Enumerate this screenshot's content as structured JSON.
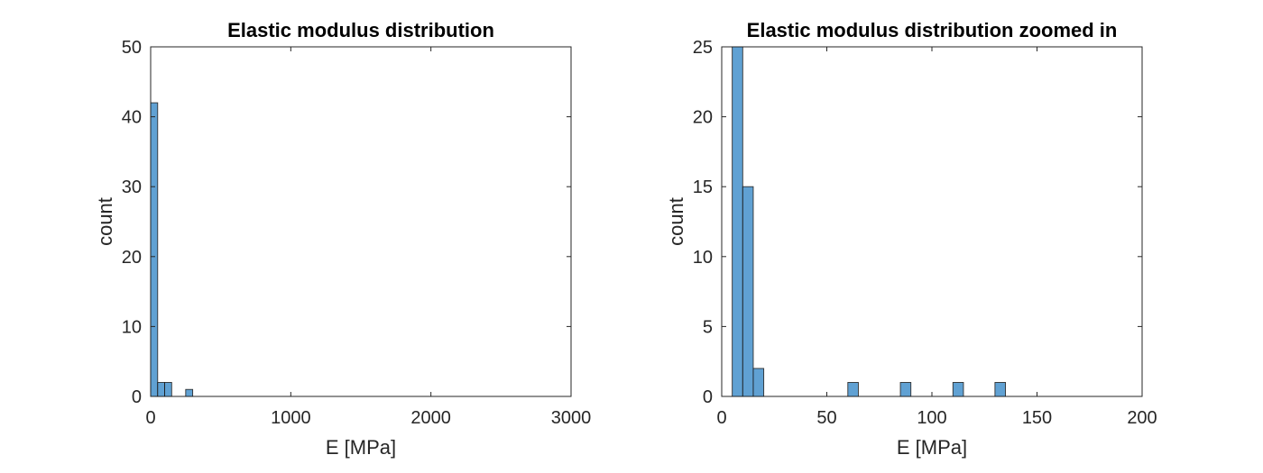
{
  "chart_data": [
    {
      "type": "bar",
      "title": "Elastic modulus distribution",
      "xlabel": "E [MPa]",
      "ylabel": "count",
      "xlim": [
        0,
        3000
      ],
      "ylim": [
        0,
        50
      ],
      "xticks": [
        0,
        1000,
        2000,
        3000
      ],
      "yticks": [
        0,
        10,
        20,
        30,
        40,
        50
      ],
      "bin_width": 50,
      "bins": [
        {
          "x0": 0,
          "x1": 50,
          "count": 42
        },
        {
          "x0": 50,
          "x1": 100,
          "count": 2
        },
        {
          "x0": 100,
          "x1": 150,
          "count": 2
        },
        {
          "x0": 250,
          "x1": 300,
          "count": 1
        }
      ]
    },
    {
      "type": "bar",
      "title": "Elastic modulus distribution zoomed in",
      "xlabel": "E [MPa]",
      "ylabel": "count",
      "xlim": [
        0,
        200
      ],
      "ylim": [
        0,
        25
      ],
      "xticks": [
        0,
        50,
        100,
        150,
        200
      ],
      "yticks": [
        0,
        5,
        10,
        15,
        20,
        25
      ],
      "bin_width": 5,
      "bins": [
        {
          "x0": 5,
          "x1": 10,
          "count": 25
        },
        {
          "x0": 10,
          "x1": 15,
          "count": 15
        },
        {
          "x0": 15,
          "x1": 20,
          "count": 2
        },
        {
          "x0": 60,
          "x1": 65,
          "count": 1
        },
        {
          "x0": 85,
          "x1": 90,
          "count": 1
        },
        {
          "x0": 110,
          "x1": 115,
          "count": 1
        },
        {
          "x0": 130,
          "x1": 135,
          "count": 1
        }
      ]
    }
  ]
}
